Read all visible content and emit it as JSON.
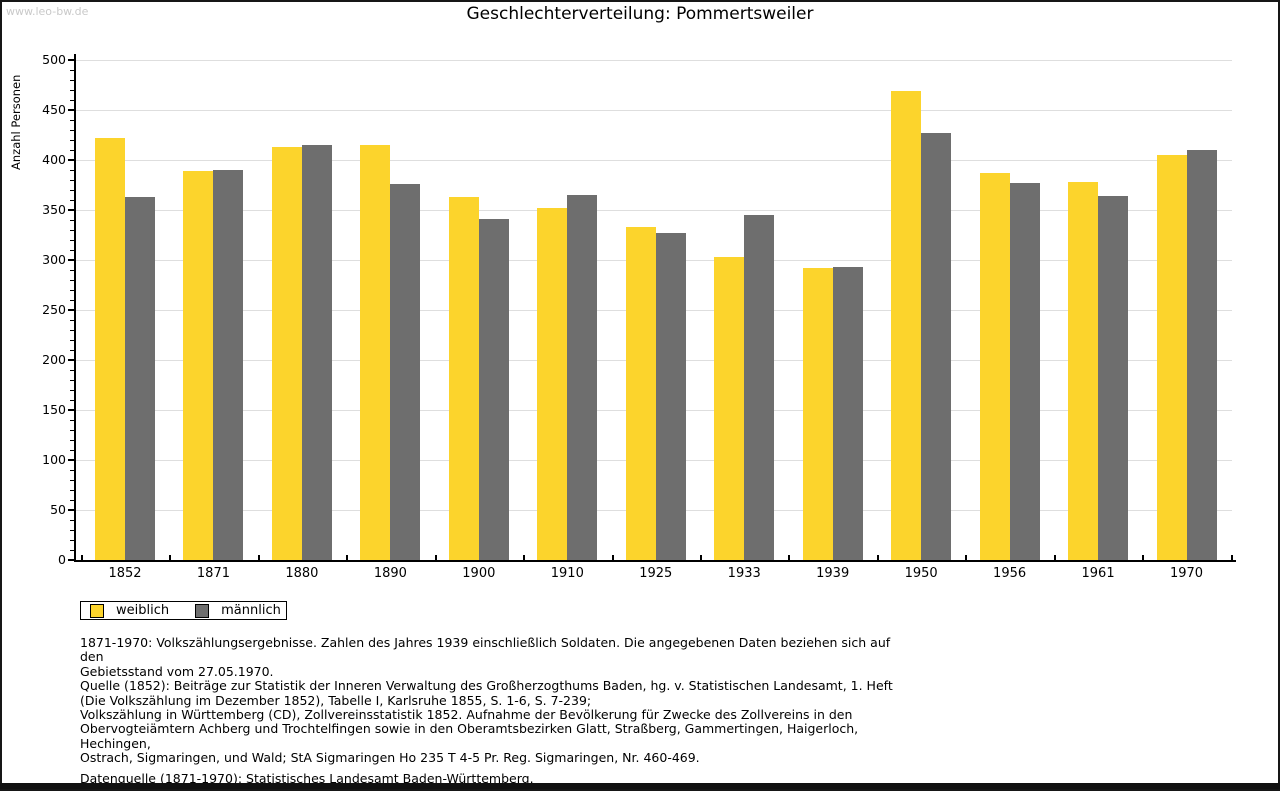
{
  "watermark": "www.leo-bw.de",
  "title": "Geschlechterverteilung: Pommertsweiler",
  "chart_data": {
    "type": "bar",
    "title": "Geschlechterverteilung: Pommertsweiler",
    "xlabel": "",
    "ylabel": "Anzahl Personen",
    "ylim": [
      0,
      500
    ],
    "grid": true,
    "legend_position": "bottom-left",
    "yticks": [
      0,
      50,
      100,
      150,
      200,
      250,
      300,
      350,
      400,
      450,
      500
    ],
    "categories": [
      "1852",
      "1871",
      "1880",
      "1890",
      "1900",
      "1910",
      "1925",
      "1933",
      "1939",
      "1950",
      "1956",
      "1961",
      "1970"
    ],
    "series": [
      {
        "name": "weiblich",
        "color": "#FCD42C",
        "values": [
          422,
          389,
          413,
          415,
          363,
          352,
          333,
          303,
          292,
          469,
          387,
          378,
          405
        ]
      },
      {
        "name": "männlich",
        "color": "#6E6E6E",
        "values": [
          363,
          390,
          415,
          376,
          341,
          365,
          327,
          345,
          293,
          427,
          377,
          364,
          410
        ]
      }
    ]
  },
  "footnotes": {
    "lines": [
      "1871-1970: Volkszählungsergebnisse. Zahlen des Jahres 1939 einschließlich Soldaten. Die angegebenen Daten beziehen sich auf den",
      "Gebietsstand vom 27.05.1970.",
      "Quelle (1852): Beiträge zur Statistik der Inneren Verwaltung des Großherzogthums Baden, hg. v. Statistischen Landesamt, 1. Heft",
      "(Die Volkszählung im Dezember 1852), Tabelle I, Karlsruhe 1855, S. 1-6, S. 7-239;",
      "Volkszählung in Württemberg (CD), Zollvereinsstatistik 1852. Aufnahme der Bevölkerung für Zwecke des Zollvereins in den",
      "Obervogteiämtern Achberg und Trochtelfingen sowie in den Oberamtsbezirken Glatt, Straßberg, Gammertingen, Haigerloch, Hechingen,",
      "Ostrach, Sigmaringen, und Wald; StA Sigmaringen Ho 235 T 4-5 Pr. Reg. Sigmaringen, Nr. 460-469."
    ],
    "datasource": "Datenquelle (1871-1970): Statistisches Landesamt Baden-Württemberg."
  }
}
